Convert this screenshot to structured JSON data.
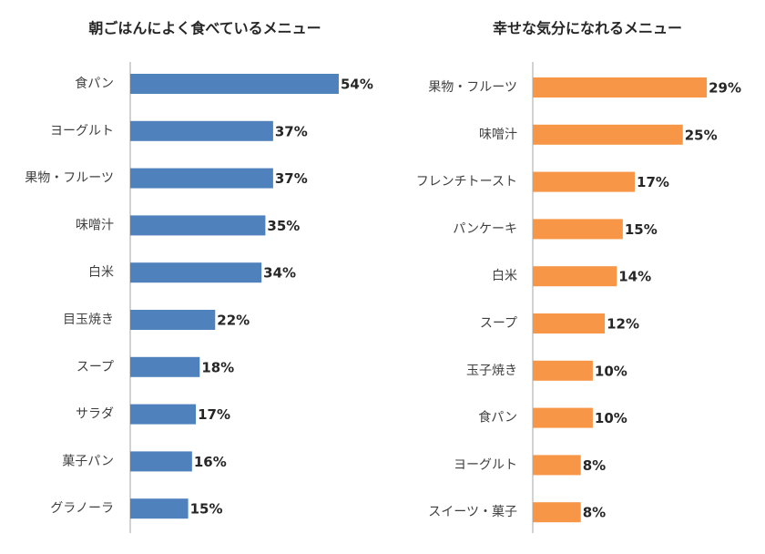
{
  "chart_data": [
    {
      "type": "bar",
      "orientation": "horizontal",
      "title": "朝ごはんによく食べているメニュー",
      "categories": [
        "食パン",
        "ヨーグルト",
        "果物・フルーツ",
        "味噌汁",
        "白米",
        "目玉焼き",
        "スープ",
        "サラダ",
        "菓子パン",
        "グラノーラ"
      ],
      "values": [
        54,
        37,
        37,
        35,
        34,
        22,
        18,
        17,
        16,
        15
      ],
      "value_labels": [
        "54%",
        "37%",
        "37%",
        "35%",
        "34%",
        "22%",
        "18%",
        "17%",
        "16%",
        "15%"
      ],
      "color": "#4f81bd"
    },
    {
      "type": "bar",
      "orientation": "horizontal",
      "title": "幸せな気分になれるメニュー",
      "categories": [
        "果物・フルーツ",
        "味噌汁",
        "フレンチトースト",
        "パンケーキ",
        "白米",
        "スープ",
        "玉子焼き",
        "食パン",
        "ヨーグルト",
        "スイーツ・菓子"
      ],
      "values": [
        29,
        25,
        17,
        15,
        14,
        12,
        10,
        10,
        8,
        8
      ],
      "value_labels": [
        "29%",
        "25%",
        "17%",
        "15%",
        "14%",
        "12%",
        "10%",
        "10%",
        "8%",
        "8%"
      ],
      "color": "#f79646"
    }
  ]
}
